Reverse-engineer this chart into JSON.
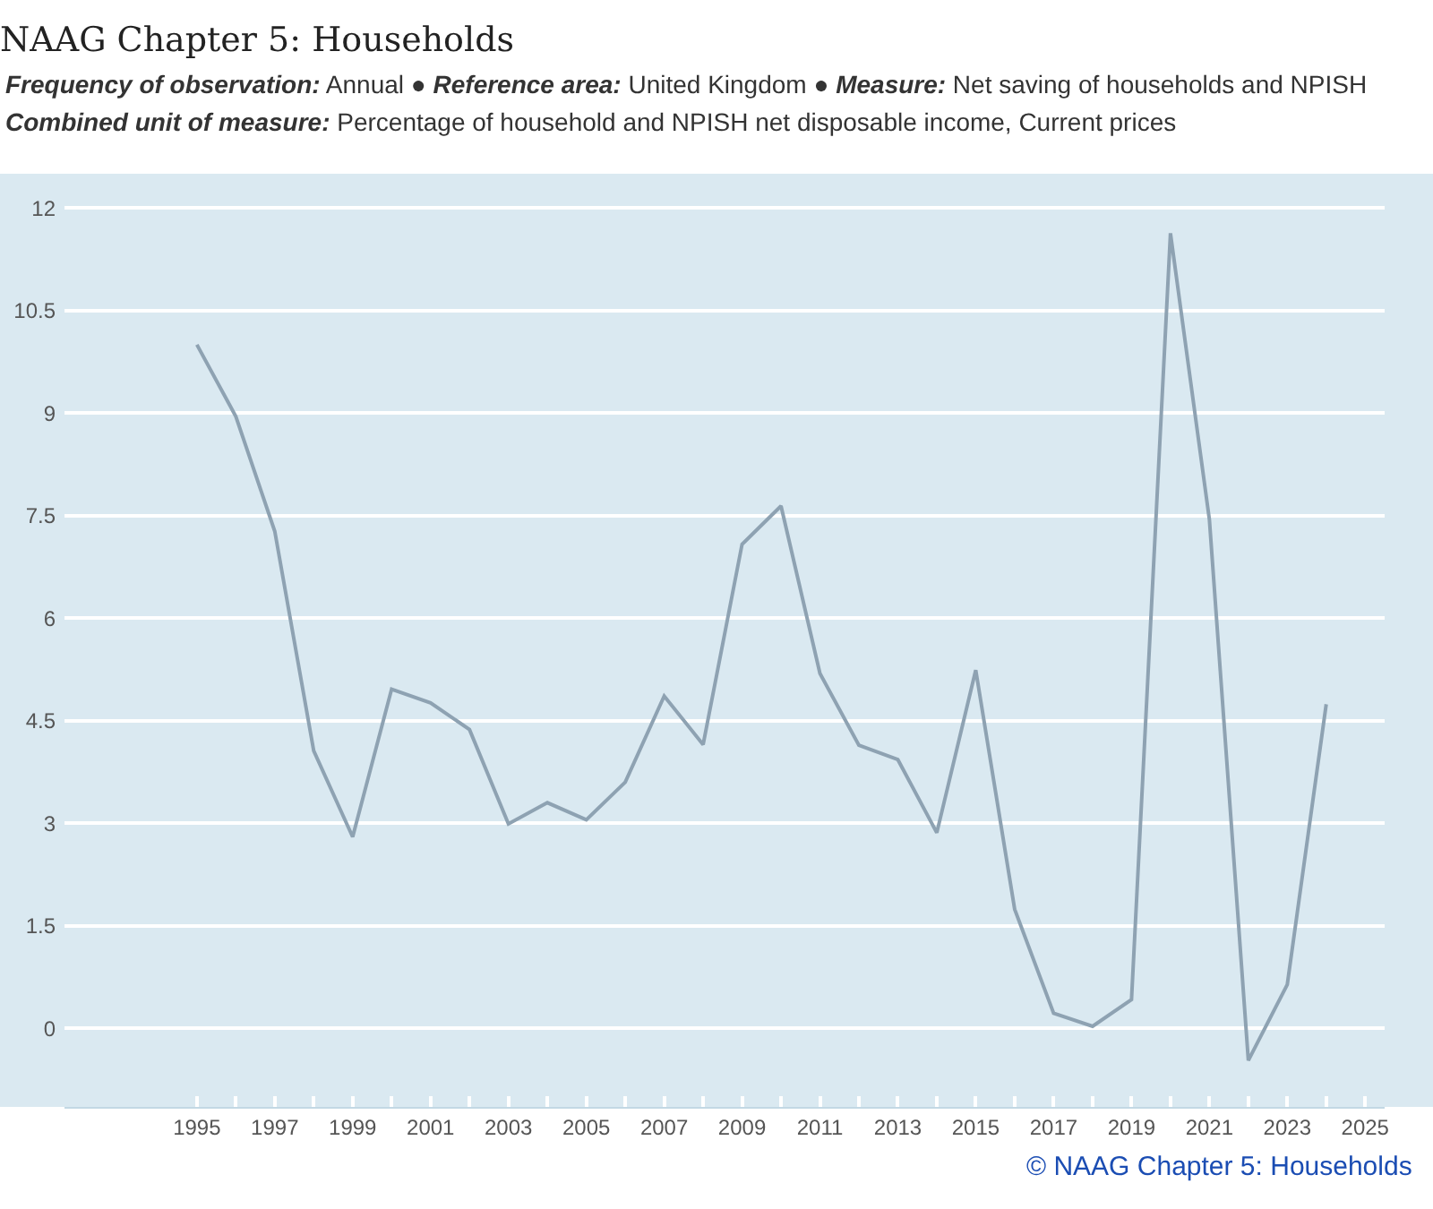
{
  "chart_data": {
    "type": "line",
    "title": "NAAG Chapter 5: Households",
    "subtitle": "Frequency of observation: Annual ● Reference area: United Kingdom ● Measure: Net saving of households and NPISH\nCombined unit of measure: Percentage of household and NPISH net disposable income, Current prices",
    "annotations": [
      "© NAAG Chapter 5: Households"
    ],
    "x": [
      1995,
      1996,
      1997,
      1998,
      1999,
      2000,
      2001,
      2002,
      2003,
      2004,
      2005,
      2006,
      2007,
      2008,
      2009,
      2010,
      2011,
      2012,
      2013,
      2014,
      2015,
      2016,
      2017,
      2018,
      2019,
      2020,
      2021,
      2022,
      2023,
      2024
    ],
    "values": [
      10.0,
      8.95,
      7.27,
      4.06,
      2.8,
      4.96,
      4.76,
      4.37,
      2.99,
      3.3,
      3.05,
      3.6,
      4.86,
      4.15,
      7.08,
      7.64,
      5.19,
      4.14,
      3.93,
      2.86,
      5.24,
      1.74,
      0.22,
      0.03,
      0.42,
      11.63,
      7.44,
      -0.47,
      0.64,
      4.74
    ],
    "color": "#8ea2b2",
    "xlim": [
      1991.6,
      2025.5
    ],
    "xticks": [
      1995,
      {
        "value": 1996,
        "label": null
      },
      1997,
      {
        "value": 1998,
        "label": null
      },
      1999,
      {
        "value": 2000,
        "label": null
      },
      2001,
      {
        "value": 2002,
        "label": null
      },
      2003,
      {
        "value": 2004,
        "label": null
      },
      2005,
      {
        "value": 2006,
        "label": null
      },
      2007,
      {
        "value": 2008,
        "label": null
      },
      2009,
      {
        "value": 2010,
        "label": null
      },
      2011,
      {
        "value": 2012,
        "label": null
      },
      2013,
      {
        "value": 2014,
        "label": null
      },
      2015,
      {
        "value": 2016,
        "label": null
      },
      2017,
      {
        "value": 2018,
        "label": null
      },
      2019,
      {
        "value": 2020,
        "label": null
      },
      2021,
      {
        "value": 2022,
        "label": null
      },
      2023,
      {
        "value": 2024,
        "label": null
      },
      2025
    ],
    "ylim": [
      -1.15,
      12.5
    ],
    "yticks": [
      0,
      1.5,
      3,
      4.5,
      6,
      7.5,
      9,
      10.5,
      12
    ],
    "grid": "y"
  }
}
